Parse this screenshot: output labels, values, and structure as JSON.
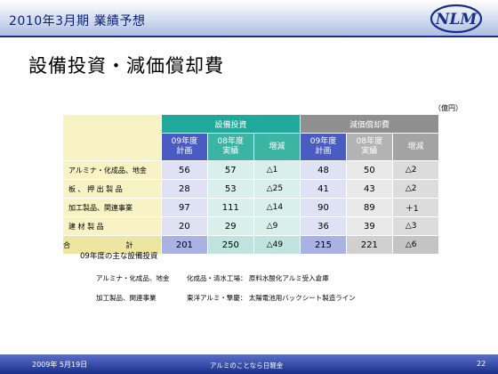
{
  "header": {
    "title": "2010年3月期 業績予想",
    "logo_text": "NLM"
  },
  "slide": {
    "title": "設備投資・減価償却費",
    "unit": "（億円）"
  },
  "table": {
    "group_headers": [
      "設備投資",
      "減価償却費"
    ],
    "sub_headers": [
      [
        "09年度",
        "計画"
      ],
      [
        "08年度",
        "実績"
      ],
      [
        "増減"
      ],
      [
        "09年度",
        "計画"
      ],
      [
        "08年度",
        "実績"
      ],
      [
        "増減"
      ]
    ],
    "rows": [
      {
        "label": "アルミナ・化成品、地金",
        "values": [
          "56",
          "57",
          "△1",
          "48",
          "50",
          "△2"
        ]
      },
      {
        "label": "板 、 押 出 製 品",
        "values": [
          "28",
          "53",
          "△25",
          "41",
          "43",
          "△2"
        ]
      },
      {
        "label": "加工製品、関連事業",
        "values": [
          "97",
          "111",
          "△14",
          "90",
          "89",
          "＋1"
        ]
      },
      {
        "label": "建 材 製 品",
        "values": [
          "20",
          "29",
          "△9",
          "36",
          "39",
          "△3"
        ]
      },
      {
        "label": "合 計",
        "values": [
          "201",
          "250",
          "△49",
          "215",
          "221",
          "△6"
        ]
      }
    ]
  },
  "capex": {
    "heading": "09年度の主な設備投資",
    "items": [
      {
        "segment": "アルミナ・化成品、地金",
        "detail": "化成品・清水工場： 原料水酸化アルミ受入倉庫"
      },
      {
        "segment": "加工製品、関連事業",
        "detail": "東洋アルミ・撃慶： 太陽電池用バックシート製造ライン"
      }
    ]
  },
  "footer": {
    "date": "2009年 5月19日",
    "slogan": "アルミのことなら日軽金",
    "page": "22"
  },
  "colors": {
    "brand_navy": "#1a2f8a",
    "capex_green": "#1fa99a",
    "depreciation_gray": "#8f8f8f",
    "plan_blue": "#4a5cc2",
    "label_yellow": "#f7f3c4"
  }
}
